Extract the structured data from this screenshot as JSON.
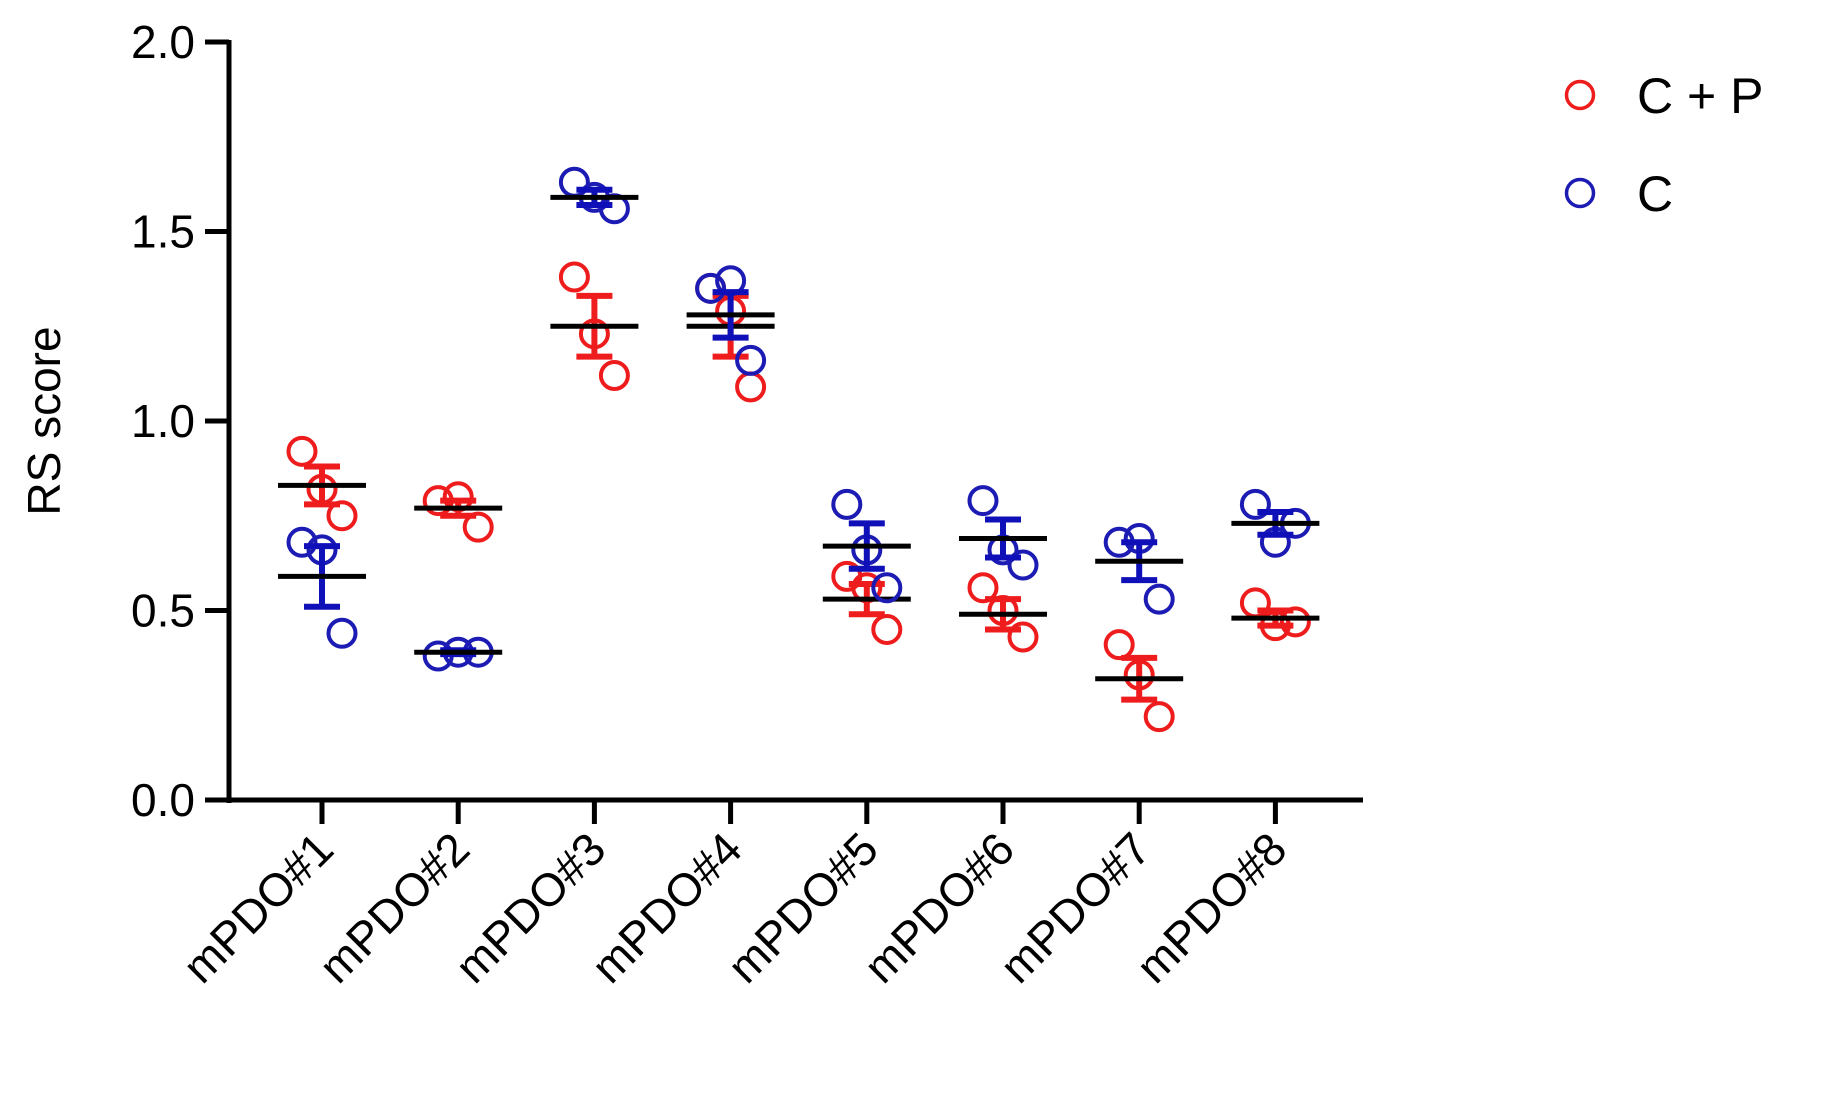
{
  "chart_data": {
    "type": "scatter",
    "title": "",
    "xlabel": "",
    "ylabel": "RS score",
    "ylim": [
      0,
      2.0
    ],
    "yticks": [
      "0.0",
      "0.5",
      "1.0",
      "1.5",
      "2.0"
    ],
    "categories": [
      "mPDO#1",
      "mPDO#2",
      "mPDO#3",
      "mPDO#4",
      "mPDO#5",
      "mPDO#6",
      "mPDO#7",
      "mPDO#8"
    ],
    "legend_position": "top-right",
    "marker": "open-circle",
    "grid": false,
    "error_bars": "mean ± SEM",
    "series": [
      {
        "name": "C + P",
        "color": "#ee1c1c",
        "errorbar_color": "#ee1c1c",
        "mean_color": "#000000",
        "points": [
          [
            0.92,
            0.82,
            0.75
          ],
          [
            0.79,
            0.8,
            0.72
          ],
          [
            1.38,
            1.23,
            1.12
          ],
          [
            1.35,
            1.29,
            1.09
          ],
          [
            0.59,
            0.56,
            0.45
          ],
          [
            0.56,
            0.5,
            0.43
          ],
          [
            0.41,
            0.33,
            0.22
          ],
          [
            0.52,
            0.46,
            0.47
          ]
        ],
        "mean": [
          0.83,
          0.77,
          1.25,
          1.25,
          0.53,
          0.49,
          0.32,
          0.48
        ],
        "sem": [
          0.05,
          0.02,
          0.08,
          0.08,
          0.04,
          0.04,
          0.055,
          0.02
        ]
      },
      {
        "name": "C",
        "color": "#1c1cb4",
        "errorbar_color": "#1010b8",
        "mean_color": "#000000",
        "points": [
          [
            0.68,
            0.66,
            0.44
          ],
          [
            0.38,
            0.39,
            0.39
          ],
          [
            1.63,
            1.59,
            1.56
          ],
          [
            1.35,
            1.37,
            1.16
          ],
          [
            0.78,
            0.66,
            0.56
          ],
          [
            0.79,
            0.66,
            0.62
          ],
          [
            0.68,
            0.69,
            0.53
          ],
          [
            0.78,
            0.68,
            0.73
          ]
        ],
        "mean": [
          0.59,
          0.39,
          1.59,
          1.28,
          0.67,
          0.69,
          0.63,
          0.73
        ],
        "sem": [
          0.08,
          0.005,
          0.02,
          0.06,
          0.06,
          0.05,
          0.05,
          0.03
        ]
      }
    ]
  }
}
